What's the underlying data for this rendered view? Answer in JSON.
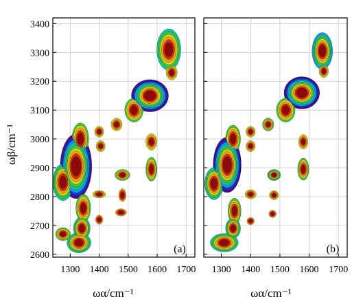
{
  "chart_data": [
    {
      "type": "heatmap",
      "panel_label": "(a)",
      "xlabel": "ωα/cm⁻¹",
      "ylabel": "ωβ/cm⁻¹",
      "xlim": [
        1240,
        1730
      ],
      "ylim": [
        2590,
        3420
      ],
      "xticks": [
        1300,
        1400,
        1500,
        1600,
        1700
      ],
      "yticks": [
        2600,
        2700,
        2800,
        2900,
        3000,
        3100,
        3200,
        3300,
        3400
      ],
      "grid": true,
      "colormap": [
        "#4b0a8a",
        "#1a2fd6",
        "#0aa0e8",
        "#16c4a0",
        "#3cc83c",
        "#d4d41a",
        "#f0a010",
        "#d43010",
        "#8c0a0a"
      ],
      "peaks": [
        {
          "x": 1320,
          "y": 2905,
          "sx": 34,
          "sy": 70,
          "amp": 1.0
        },
        {
          "x": 1275,
          "y": 2850,
          "sx": 22,
          "sy": 40,
          "amp": 0.7
        },
        {
          "x": 1335,
          "y": 3000,
          "sx": 18,
          "sy": 35,
          "amp": 0.55
        },
        {
          "x": 1345,
          "y": 2760,
          "sx": 16,
          "sy": 30,
          "amp": 0.6
        },
        {
          "x": 1340,
          "y": 2690,
          "sx": 18,
          "sy": 25,
          "amp": 0.7
        },
        {
          "x": 1330,
          "y": 2640,
          "sx": 26,
          "sy": 22,
          "amp": 0.65
        },
        {
          "x": 1275,
          "y": 2670,
          "sx": 16,
          "sy": 14,
          "amp": 0.5
        },
        {
          "x": 1400,
          "y": 3025,
          "sx": 10,
          "sy": 12,
          "amp": 0.4
        },
        {
          "x": 1405,
          "y": 2975,
          "sx": 10,
          "sy": 12,
          "amp": 0.4
        },
        {
          "x": 1400,
          "y": 2808,
          "sx": 14,
          "sy": 8,
          "amp": 0.4
        },
        {
          "x": 1400,
          "y": 2720,
          "sx": 8,
          "sy": 10,
          "amp": 0.3
        },
        {
          "x": 1460,
          "y": 3050,
          "sx": 12,
          "sy": 14,
          "amp": 0.45
        },
        {
          "x": 1480,
          "y": 2875,
          "sx": 16,
          "sy": 12,
          "amp": 0.6
        },
        {
          "x": 1480,
          "y": 2805,
          "sx": 8,
          "sy": 14,
          "amp": 0.35
        },
        {
          "x": 1475,
          "y": 2745,
          "sx": 12,
          "sy": 8,
          "amp": 0.35
        },
        {
          "x": 1575,
          "y": 3150,
          "sx": 40,
          "sy": 35,
          "amp": 1.0
        },
        {
          "x": 1520,
          "y": 3100,
          "sx": 20,
          "sy": 26,
          "amp": 0.55
        },
        {
          "x": 1580,
          "y": 2990,
          "sx": 12,
          "sy": 18,
          "amp": 0.45
        },
        {
          "x": 1580,
          "y": 2895,
          "sx": 12,
          "sy": 26,
          "amp": 0.5
        },
        {
          "x": 1640,
          "y": 3310,
          "sx": 26,
          "sy": 45,
          "amp": 0.7
        },
        {
          "x": 1650,
          "y": 3230,
          "sx": 12,
          "sy": 16,
          "amp": 0.4
        }
      ]
    },
    {
      "type": "heatmap",
      "panel_label": "(b)",
      "xlabel": "ωα/cm⁻¹",
      "ylabel": "",
      "xlim": [
        1240,
        1730
      ],
      "ylim": [
        2590,
        3420
      ],
      "xticks": [
        1300,
        1400,
        1500,
        1600,
        1700
      ],
      "yticks": [
        2600,
        2700,
        2800,
        2900,
        3000,
        3100,
        3200,
        3300,
        3400
      ],
      "grid": true,
      "colormap": [
        "#4b0a8a",
        "#1a2fd6",
        "#0aa0e8",
        "#16c4a0",
        "#3cc83c",
        "#d4d41a",
        "#f0a010",
        "#d43010",
        "#8c0a0a"
      ],
      "peaks": [
        {
          "x": 1320,
          "y": 2910,
          "sx": 30,
          "sy": 60,
          "amp": 1.0
        },
        {
          "x": 1275,
          "y": 2845,
          "sx": 20,
          "sy": 35,
          "amp": 0.65
        },
        {
          "x": 1340,
          "y": 3000,
          "sx": 16,
          "sy": 30,
          "amp": 0.5
        },
        {
          "x": 1345,
          "y": 2750,
          "sx": 14,
          "sy": 28,
          "amp": 0.55
        },
        {
          "x": 1340,
          "y": 2690,
          "sx": 16,
          "sy": 22,
          "amp": 0.7
        },
        {
          "x": 1310,
          "y": 2640,
          "sx": 30,
          "sy": 20,
          "amp": 0.65
        },
        {
          "x": 1400,
          "y": 3025,
          "sx": 10,
          "sy": 12,
          "amp": 0.45
        },
        {
          "x": 1400,
          "y": 2975,
          "sx": 10,
          "sy": 12,
          "amp": 0.45
        },
        {
          "x": 1400,
          "y": 2808,
          "sx": 12,
          "sy": 10,
          "amp": 0.45
        },
        {
          "x": 1400,
          "y": 2715,
          "sx": 8,
          "sy": 8,
          "amp": 0.3
        },
        {
          "x": 1460,
          "y": 3050,
          "sx": 12,
          "sy": 14,
          "amp": 0.5
        },
        {
          "x": 1480,
          "y": 2875,
          "sx": 14,
          "sy": 12,
          "amp": 0.65
        },
        {
          "x": 1480,
          "y": 2805,
          "sx": 10,
          "sy": 10,
          "amp": 0.45
        },
        {
          "x": 1475,
          "y": 2740,
          "sx": 8,
          "sy": 8,
          "amp": 0.35
        },
        {
          "x": 1575,
          "y": 3160,
          "sx": 38,
          "sy": 35,
          "amp": 1.0
        },
        {
          "x": 1520,
          "y": 3100,
          "sx": 20,
          "sy": 26,
          "amp": 0.55
        },
        {
          "x": 1580,
          "y": 2990,
          "sx": 10,
          "sy": 16,
          "amp": 0.45
        },
        {
          "x": 1580,
          "y": 2895,
          "sx": 12,
          "sy": 24,
          "amp": 0.5
        },
        {
          "x": 1645,
          "y": 3305,
          "sx": 22,
          "sy": 40,
          "amp": 0.75
        },
        {
          "x": 1650,
          "y": 3235,
          "sx": 10,
          "sy": 14,
          "amp": 0.4
        }
      ]
    }
  ]
}
